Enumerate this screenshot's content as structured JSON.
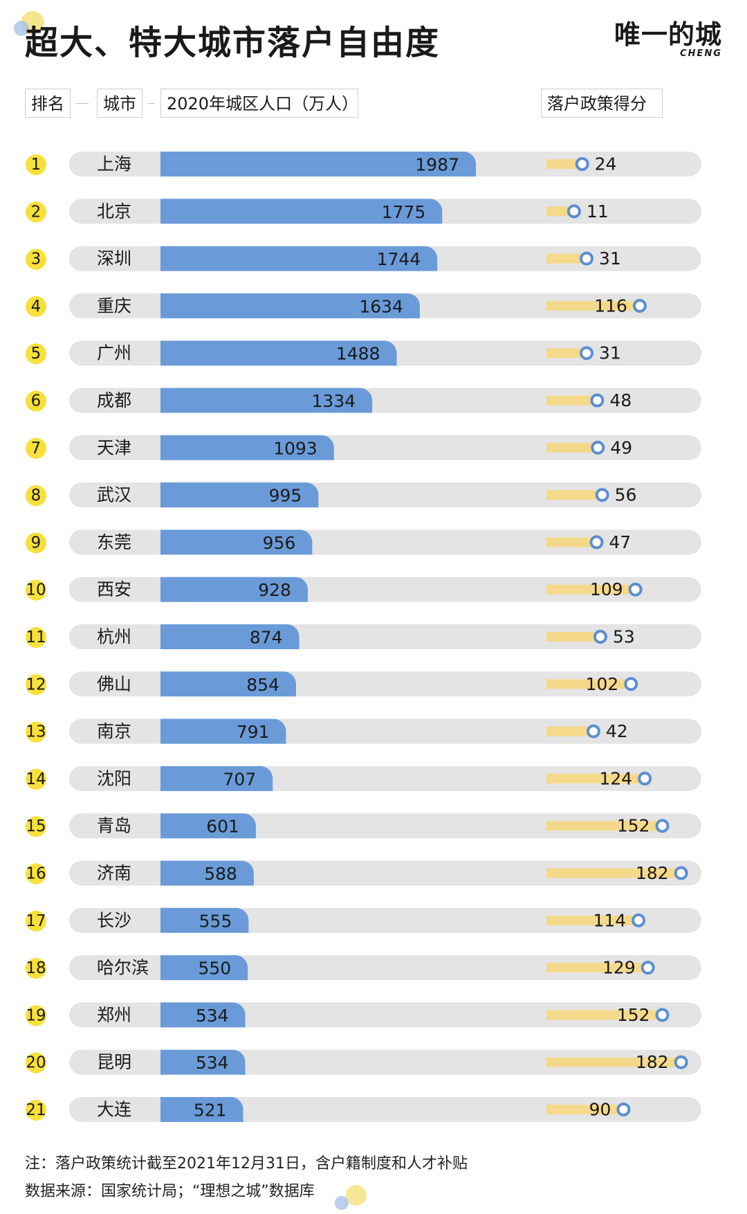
{
  "page": {
    "title": "超大、特大城市落户自由度",
    "brand": {
      "name": "唯一的城",
      "sub": "CHENG"
    },
    "headers": {
      "rank": "排名",
      "city": "城市",
      "population": "2020年城区人口（万人）",
      "score": "落户政策得分"
    },
    "notes": [
      "注：落户政策统计截至2021年12月31日，含户籍制度和人才补贴",
      "数据来源：国家统计局；“理想之城”数据库"
    ]
  },
  "colors": {
    "bar": "#6a9bd8",
    "track": "#e4e4e4",
    "score_bar": "#f5d98b",
    "marker_ring": "#5b8fd0",
    "rank_badge": "#f7e03a",
    "decor_yellow": "#f3dc6a",
    "decor_blue": "#a9c2e8"
  },
  "chart_data": {
    "type": "bar",
    "series": [
      {
        "name": "2020年城区人口（万人）",
        "unit": "万人"
      },
      {
        "name": "落户政策得分"
      }
    ],
    "rows": [
      {
        "rank": "1",
        "city": "上海",
        "population": 1987,
        "score": 24
      },
      {
        "rank": "2",
        "city": "北京",
        "population": 1775,
        "score": 11
      },
      {
        "rank": "3",
        "city": "深圳",
        "population": 1744,
        "score": 31
      },
      {
        "rank": "4",
        "city": "重庆",
        "population": 1634,
        "score": 116
      },
      {
        "rank": "5",
        "city": "广州",
        "population": 1488,
        "score": 31
      },
      {
        "rank": "6",
        "city": "成都",
        "population": 1334,
        "score": 48
      },
      {
        "rank": "7",
        "city": "天津",
        "population": 1093,
        "score": 49
      },
      {
        "rank": "8",
        "city": "武汉",
        "population": 995,
        "score": 56
      },
      {
        "rank": "9",
        "city": "东莞",
        "population": 956,
        "score": 47
      },
      {
        "rank": "10",
        "city": "西安",
        "population": 928,
        "score": 109
      },
      {
        "rank": "11",
        "city": "杭州",
        "population": 874,
        "score": 53
      },
      {
        "rank": "12",
        "city": "佛山",
        "population": 854,
        "score": 102
      },
      {
        "rank": "13",
        "city": "南京",
        "population": 791,
        "score": 42
      },
      {
        "rank": "14",
        "city": "沈阳",
        "population": 707,
        "score": 124
      },
      {
        "rank": "15",
        "city": "青岛",
        "population": 601,
        "score": 152
      },
      {
        "rank": "16",
        "city": "济南",
        "population": 588,
        "score": 182
      },
      {
        "rank": "17",
        "city": "长沙",
        "population": 555,
        "score": 114
      },
      {
        "rank": "18",
        "city": "哈尔滨",
        "population": 550,
        "score": 129
      },
      {
        "rank": "19",
        "city": "郑州",
        "population": 534,
        "score": 152
      },
      {
        "rank": "20",
        "city": "昆明",
        "population": 534,
        "score": 182
      },
      {
        "rank": "21",
        "city": "大连",
        "population": 521,
        "score": 90
      }
    ],
    "population_range": [
      0,
      2000
    ],
    "score_range": [
      0,
      182
    ],
    "grid": false,
    "legend": "none"
  }
}
